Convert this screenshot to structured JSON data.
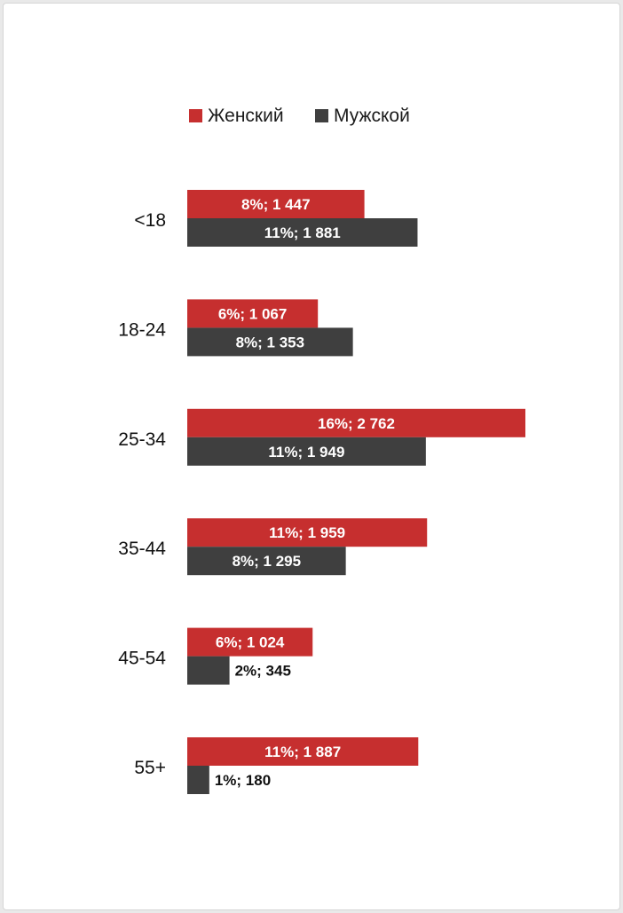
{
  "chart_data": {
    "type": "bar",
    "orientation": "horizontal",
    "categories": [
      "<18",
      "18-24",
      "25-34",
      "35-44",
      "45-54",
      "55+"
    ],
    "series": [
      {
        "name": "Женский",
        "color": "#c62f2f",
        "values": [
          1447,
          1067,
          2762,
          1959,
          1024,
          1887
        ],
        "labels": [
          "8%; 1 447",
          "6%; 1 067",
          "16%; 2 762",
          "11%; 1 959",
          "6%; 1 024",
          "11%; 1 887"
        ]
      },
      {
        "name": "Мужской",
        "color": "#3f3f3f",
        "values": [
          1881,
          1353,
          1949,
          1295,
          345,
          180
        ],
        "labels": [
          "11%; 1 881",
          "8%; 1 353",
          "11%; 1 949",
          "8%; 1 295",
          "2%; 345",
          "1%; 180"
        ]
      }
    ],
    "legend_position": "top-center",
    "xlim": [
      0,
      2762
    ],
    "grid": false
  }
}
